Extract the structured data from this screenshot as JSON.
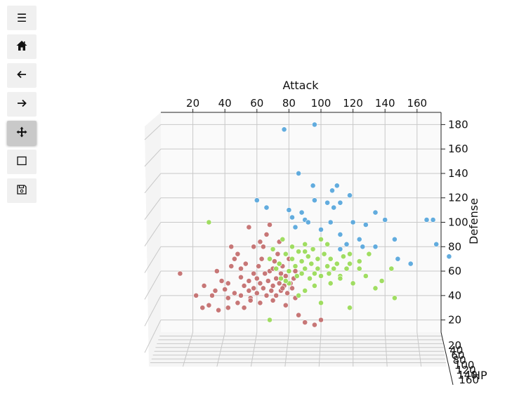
{
  "toolbar": {
    "buttons": [
      {
        "name": "menu-button",
        "icon": "hamburger-icon",
        "glyph": "☰",
        "active": false
      },
      {
        "name": "home-button",
        "icon": "home-icon",
        "glyph": "",
        "active": false
      },
      {
        "name": "back-button",
        "icon": "arrow-left-icon",
        "glyph": "🡐",
        "active": false
      },
      {
        "name": "forward-button",
        "icon": "arrow-right-icon",
        "glyph": "🡒",
        "active": false
      },
      {
        "name": "pan-button",
        "icon": "move-icon",
        "glyph": "✥",
        "active": true
      },
      {
        "name": "zoom-button",
        "icon": "zoom-rect-icon",
        "glyph": "",
        "active": false
      },
      {
        "name": "save-button",
        "icon": "floppy-disk-icon",
        "glyph": "",
        "active": false
      }
    ]
  },
  "chart_data": {
    "type": "scatter",
    "projection": "3d",
    "title": "",
    "xlabel": "Attack",
    "ylabel": "HP",
    "zlabel": "Defense",
    "xticks": [
      20,
      40,
      60,
      80,
      100,
      120,
      140,
      160
    ],
    "yticks": [
      20,
      40,
      60,
      80,
      100,
      120,
      140,
      160
    ],
    "zticks": [
      20,
      40,
      60,
      80,
      100,
      120,
      140,
      160,
      180
    ],
    "xlim": [
      0,
      175
    ],
    "zlim": [
      10,
      190
    ],
    "grid": true,
    "legend": "none",
    "series": [
      {
        "color": "#c47070",
        "points": [
          [
            12,
            58
          ],
          [
            22,
            40
          ],
          [
            27,
            48
          ],
          [
            30,
            32
          ],
          [
            32,
            40
          ],
          [
            35,
            60
          ],
          [
            38,
            52
          ],
          [
            40,
            45
          ],
          [
            42,
            50
          ],
          [
            42,
            38
          ],
          [
            44,
            64
          ],
          [
            46,
            42
          ],
          [
            48,
            74
          ],
          [
            50,
            55
          ],
          [
            50,
            40
          ],
          [
            52,
            48
          ],
          [
            53,
            66
          ],
          [
            55,
            44
          ],
          [
            55,
            52
          ],
          [
            56,
            38
          ],
          [
            58,
            58
          ],
          [
            58,
            46
          ],
          [
            60,
            54
          ],
          [
            60,
            42
          ],
          [
            61,
            64
          ],
          [
            62,
            50
          ],
          [
            63,
            70
          ],
          [
            64,
            46
          ],
          [
            65,
            58
          ],
          [
            66,
            40
          ],
          [
            67,
            52
          ],
          [
            68,
            60
          ],
          [
            69,
            44
          ],
          [
            70,
            62
          ],
          [
            70,
            48
          ],
          [
            71,
            68
          ],
          [
            72,
            54
          ],
          [
            72,
            40
          ],
          [
            73,
            74
          ],
          [
            74,
            50
          ],
          [
            75,
            58
          ],
          [
            75,
            44
          ],
          [
            76,
            64
          ],
          [
            77,
            48
          ],
          [
            78,
            56
          ],
          [
            79,
            42
          ],
          [
            80,
            60
          ],
          [
            81,
            50
          ],
          [
            82,
            46
          ],
          [
            83,
            54
          ],
          [
            62,
            84
          ],
          [
            55,
            96
          ],
          [
            66,
            90
          ],
          [
            68,
            98
          ],
          [
            44,
            80
          ],
          [
            36,
            28
          ],
          [
            42,
            30
          ],
          [
            48,
            34
          ],
          [
            52,
            30
          ],
          [
            56,
            36
          ],
          [
            62,
            34
          ],
          [
            70,
            36
          ],
          [
            78,
            32
          ],
          [
            84,
            38
          ],
          [
            86,
            24
          ],
          [
            90,
            18
          ],
          [
            96,
            16
          ],
          [
            100,
            20
          ],
          [
            58,
            80
          ],
          [
            74,
            84
          ],
          [
            80,
            70
          ],
          [
            34,
            44
          ],
          [
            26,
            30
          ],
          [
            46,
            70
          ],
          [
            50,
            62
          ],
          [
            64,
            80
          ],
          [
            76,
            46
          ],
          [
            84,
            60
          ]
        ]
      },
      {
        "color": "#9bdb5a",
        "points": [
          [
            30,
            100
          ],
          [
            68,
            70
          ],
          [
            70,
            78
          ],
          [
            72,
            62
          ],
          [
            74,
            66
          ],
          [
            75,
            54
          ],
          [
            76,
            86
          ],
          [
            78,
            74
          ],
          [
            80,
            60
          ],
          [
            80,
            50
          ],
          [
            82,
            70
          ],
          [
            82,
            80
          ],
          [
            84,
            64
          ],
          [
            85,
            56
          ],
          [
            86,
            76
          ],
          [
            88,
            58
          ],
          [
            88,
            68
          ],
          [
            90,
            82
          ],
          [
            90,
            62
          ],
          [
            92,
            72
          ],
          [
            93,
            54
          ],
          [
            94,
            66
          ],
          [
            95,
            78
          ],
          [
            96,
            58
          ],
          [
            98,
            70
          ],
          [
            98,
            62
          ],
          [
            100,
            86
          ],
          [
            100,
            56
          ],
          [
            102,
            74
          ],
          [
            104,
            64
          ],
          [
            105,
            58
          ],
          [
            106,
            70
          ],
          [
            108,
            62
          ],
          [
            110,
            66
          ],
          [
            112,
            56
          ],
          [
            114,
            72
          ],
          [
            116,
            62
          ],
          [
            118,
            74
          ],
          [
            120,
            50
          ],
          [
            124,
            62
          ],
          [
            128,
            56
          ],
          [
            134,
            46
          ],
          [
            138,
            52
          ],
          [
            144,
            62
          ],
          [
            146,
            38
          ],
          [
            86,
            40
          ],
          [
            90,
            44
          ],
          [
            100,
            34
          ],
          [
            106,
            50
          ],
          [
            112,
            54
          ],
          [
            118,
            66
          ],
          [
            124,
            68
          ],
          [
            130,
            74
          ],
          [
            96,
            48
          ],
          [
            80,
            60
          ],
          [
            74,
            66
          ],
          [
            78,
            52
          ],
          [
            90,
            76
          ],
          [
            104,
            82
          ],
          [
            68,
            20
          ],
          [
            118,
            30
          ]
        ]
      },
      {
        "color": "#5aa8dc",
        "points": [
          [
            77,
            176
          ],
          [
            96,
            180
          ],
          [
            86,
            140
          ],
          [
            95,
            130
          ],
          [
            107,
            126
          ],
          [
            110,
            130
          ],
          [
            104,
            116
          ],
          [
            108,
            112
          ],
          [
            112,
            116
          ],
          [
            118,
            122
          ],
          [
            96,
            118
          ],
          [
            82,
            104
          ],
          [
            90,
            102
          ],
          [
            84,
            96
          ],
          [
            92,
            100
          ],
          [
            100,
            94
          ],
          [
            106,
            100
          ],
          [
            112,
            90
          ],
          [
            120,
            100
          ],
          [
            124,
            86
          ],
          [
            128,
            98
          ],
          [
            134,
            108
          ],
          [
            140,
            102
          ],
          [
            146,
            86
          ],
          [
            156,
            66
          ],
          [
            166,
            102
          ],
          [
            170,
            102
          ],
          [
            172,
            82
          ],
          [
            180,
            72
          ],
          [
            60,
            118
          ],
          [
            66,
            112
          ],
          [
            80,
            110
          ],
          [
            88,
            108
          ],
          [
            116,
            82
          ],
          [
            134,
            80
          ],
          [
            148,
            70
          ],
          [
            126,
            80
          ],
          [
            112,
            78
          ]
        ]
      }
    ]
  }
}
